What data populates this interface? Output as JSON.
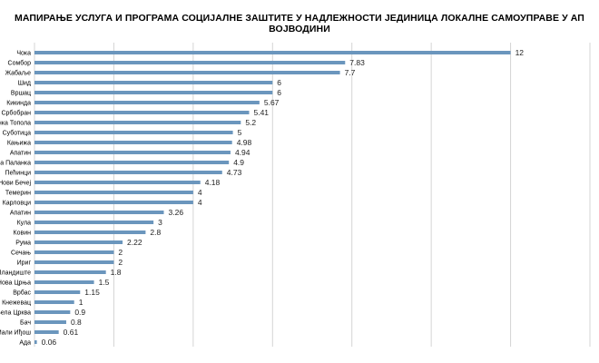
{
  "chart_data": {
    "type": "bar",
    "orientation": "horizontal",
    "title": "МАПИРАЊЕ УСЛУГА И ПРОГРАМА СОЦИЈАЛНЕ ЗАШТИТЕ У НАДЛЕЖНОСТИ ЈЕДИНИЦА ЛОКАЛНЕ САМОУПРАВЕ У АП ВОЈВОДИНИ",
    "xlabel": "",
    "ylabel": "",
    "xlim": [
      0,
      14
    ],
    "grid": true,
    "legend": "none",
    "categories": [
      "Чока",
      "Сомбор",
      "Жабаље",
      "Шид",
      "Вршац",
      "Кикинда",
      "Србобран",
      "Бачка Топола",
      "Суботица",
      "Кањижа",
      "Апатин",
      "Бачка Паланка",
      "Пећинци",
      "Нови Бечеј",
      "Темерин",
      "Карловци",
      "Апатин",
      "Кула",
      "Ковин",
      "Рума",
      "Сечањ",
      "Ириг",
      "Пландиште",
      "Нова Црња",
      "Врбас",
      "Кнежевац",
      "Бела Црква",
      "Бач",
      "Мали Иђош",
      "Ада"
    ],
    "values": [
      12,
      7.83,
      7.7,
      6,
      6,
      5.67,
      5.41,
      5.2,
      5,
      4.98,
      4.94,
      4.9,
      4.73,
      4.18,
      4,
      4,
      3.26,
      3,
      2.8,
      2.22,
      2,
      2,
      1.8,
      1.5,
      1.15,
      1,
      0.9,
      0.8,
      0.61,
      0.06
    ],
    "value_labels": [
      "12",
      "7.83",
      "7.7",
      "6",
      "6",
      "5.67",
      "5.41",
      "5.2",
      "5",
      "4.98",
      "4.94",
      "4.9",
      "4.73",
      "4.18",
      "4",
      "4",
      "3.26",
      "3",
      "2.8",
      "2.22",
      "2",
      "2",
      "1.8",
      "1.5",
      "1.15",
      "1",
      "0.9",
      "0.8",
      "0.61",
      "0.06"
    ],
    "bar_color": "#6b96bd",
    "grid_color": "#d4d4d4"
  }
}
